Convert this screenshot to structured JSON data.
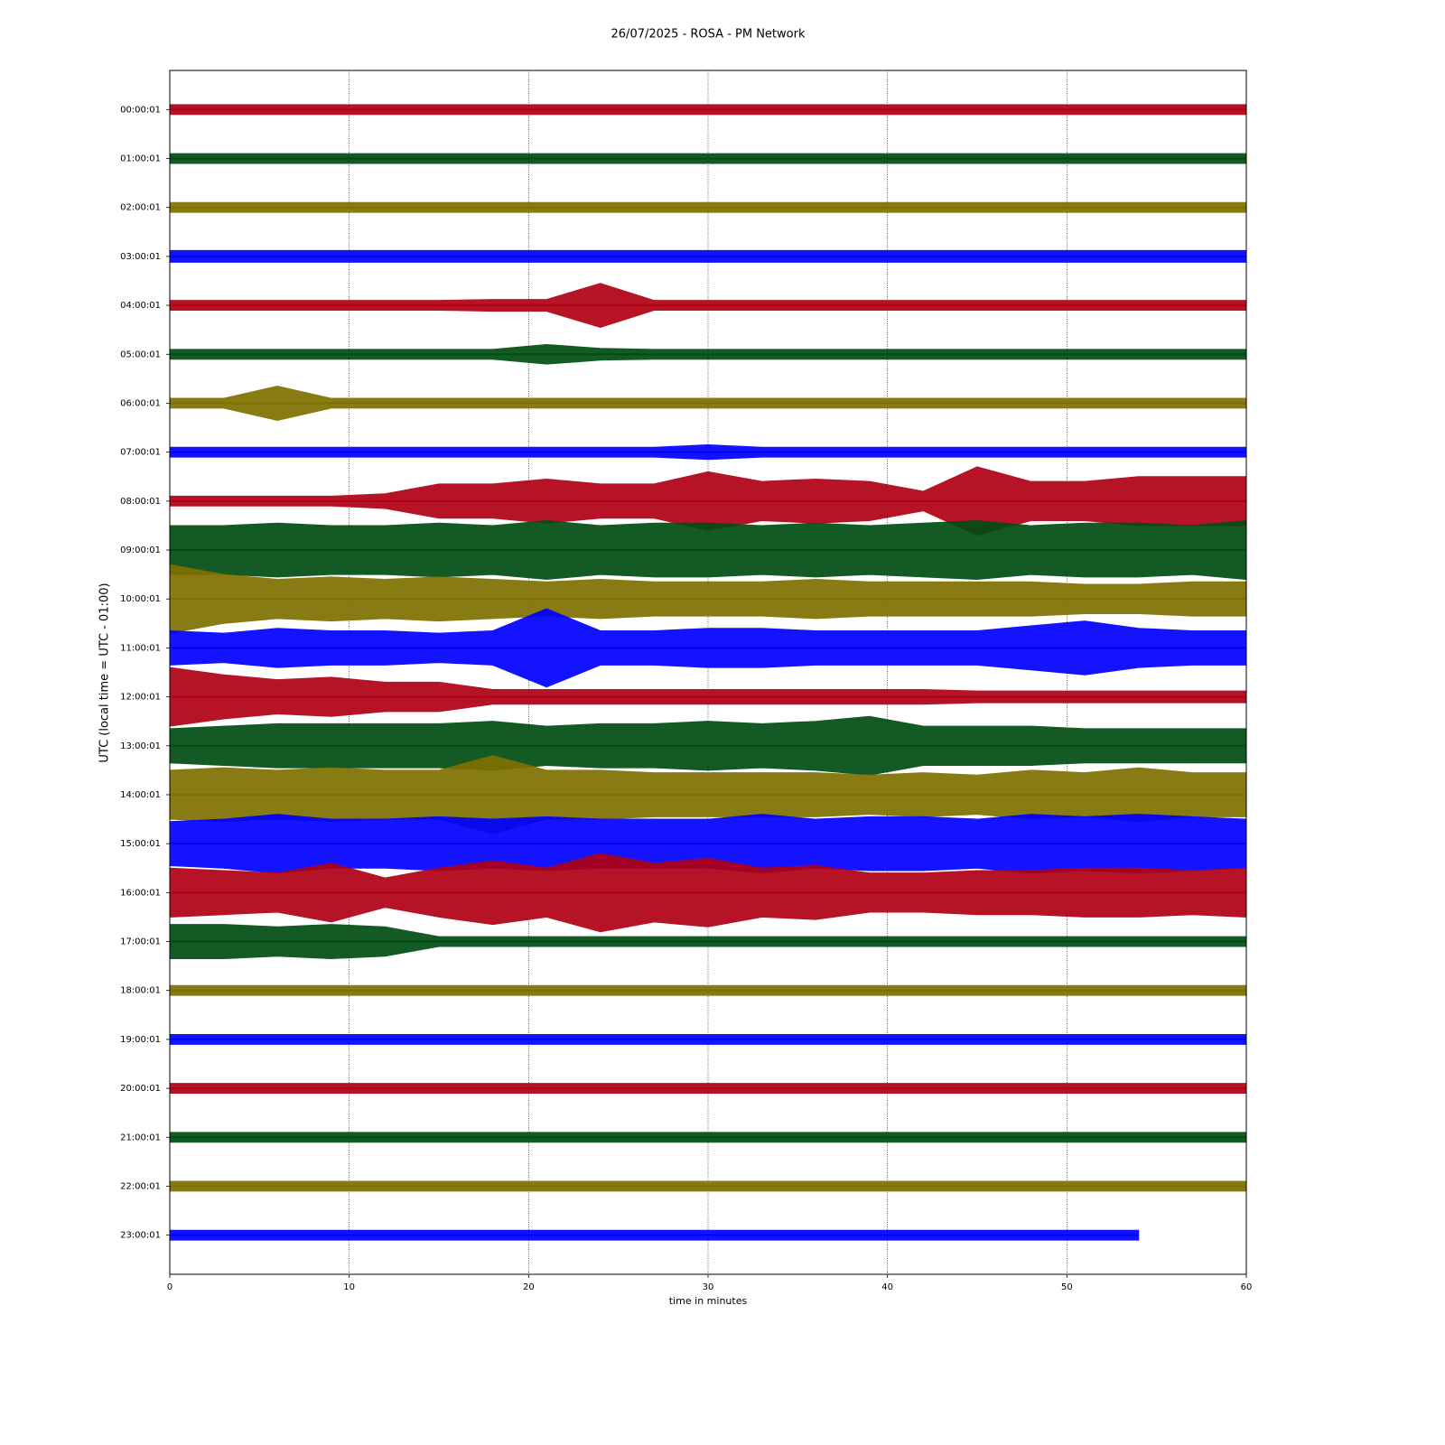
{
  "chart_data": {
    "type": "helicorder",
    "title": "26/07/2025 - ROSA - PM Network",
    "xlabel": "time in minutes",
    "ylabel": "UTC (local time = UTC - 01:00)",
    "xlim": [
      0,
      60
    ],
    "xticks": [
      0,
      10,
      20,
      30,
      40,
      50,
      60
    ],
    "ylim": [
      -0.8,
      23.8
    ],
    "y_inverted": true,
    "grid": true,
    "x": [
      0,
      3,
      6,
      9,
      12,
      15,
      18,
      21,
      24,
      27,
      30,
      33,
      36,
      39,
      42,
      45,
      48,
      51,
      54,
      57,
      60
    ],
    "series": [
      {
        "label": "00:00:01",
        "color": "#b00014",
        "values": [
          0.1,
          0.1,
          0.1,
          0.1,
          0.1,
          0.1,
          0.1,
          0.1,
          0.1,
          0.1,
          0.1,
          0.1,
          0.1,
          0.1,
          0.1,
          0.1,
          0.1,
          0.1,
          0.1,
          0.1,
          0.1
        ]
      },
      {
        "label": "01:00:01",
        "color": "#004d12",
        "values": [
          0.1,
          0.1,
          0.1,
          0.1,
          0.1,
          0.1,
          0.1,
          0.1,
          0.1,
          0.1,
          0.1,
          0.1,
          0.1,
          0.1,
          0.1,
          0.1,
          0.1,
          0.1,
          0.1,
          0.1,
          0.1
        ]
      },
      {
        "label": "02:00:01",
        "color": "#807000",
        "values": [
          0.1,
          0.1,
          0.1,
          0.1,
          0.1,
          0.1,
          0.1,
          0.1,
          0.1,
          0.1,
          0.1,
          0.1,
          0.1,
          0.1,
          0.1,
          0.1,
          0.1,
          0.1,
          0.1,
          0.1,
          0.1
        ]
      },
      {
        "label": "03:00:01",
        "color": "#0000ff",
        "values": [
          0.12,
          0.12,
          0.12,
          0.12,
          0.12,
          0.12,
          0.12,
          0.12,
          0.12,
          0.12,
          0.12,
          0.12,
          0.12,
          0.12,
          0.12,
          0.12,
          0.12,
          0.12,
          0.12,
          0.12,
          0.12
        ]
      },
      {
        "label": "04:00:01",
        "color": "#b00014",
        "values": [
          0.1,
          0.1,
          0.1,
          0.1,
          0.1,
          0.1,
          0.12,
          0.12,
          0.45,
          0.1,
          0.1,
          0.1,
          0.1,
          0.1,
          0.1,
          0.1,
          0.1,
          0.1,
          0.1,
          0.1,
          0.1
        ]
      },
      {
        "label": "05:00:01",
        "color": "#004d12",
        "values": [
          0.1,
          0.1,
          0.1,
          0.1,
          0.1,
          0.1,
          0.1,
          0.2,
          0.12,
          0.1,
          0.1,
          0.1,
          0.1,
          0.1,
          0.1,
          0.1,
          0.1,
          0.1,
          0.1,
          0.1,
          0.1
        ]
      },
      {
        "label": "06:00:01",
        "color": "#807000",
        "values": [
          0.1,
          0.1,
          0.35,
          0.1,
          0.1,
          0.1,
          0.1,
          0.1,
          0.1,
          0.1,
          0.1,
          0.1,
          0.1,
          0.1,
          0.1,
          0.1,
          0.1,
          0.1,
          0.1,
          0.1,
          0.1
        ]
      },
      {
        "label": "07:00:01",
        "color": "#0000ff",
        "values": [
          0.1,
          0.1,
          0.1,
          0.1,
          0.1,
          0.1,
          0.1,
          0.1,
          0.1,
          0.1,
          0.15,
          0.1,
          0.1,
          0.1,
          0.1,
          0.1,
          0.1,
          0.1,
          0.1,
          0.1,
          0.1
        ]
      },
      {
        "label": "08:00:01",
        "color": "#b00014",
        "values": [
          0.1,
          0.1,
          0.1,
          0.1,
          0.15,
          0.35,
          0.35,
          0.45,
          0.35,
          0.35,
          0.6,
          0.4,
          0.45,
          0.4,
          0.2,
          0.7,
          0.4,
          0.4,
          0.5,
          0.5,
          0.5
        ]
      },
      {
        "label": "09:00:01",
        "color": "#004d12",
        "values": [
          0.5,
          0.5,
          0.55,
          0.5,
          0.5,
          0.55,
          0.5,
          0.6,
          0.5,
          0.55,
          0.55,
          0.5,
          0.55,
          0.5,
          0.55,
          0.6,
          0.5,
          0.55,
          0.55,
          0.5,
          0.6
        ]
      },
      {
        "label": "10:00:01",
        "color": "#807000",
        "values": [
          0.7,
          0.5,
          0.4,
          0.45,
          0.4,
          0.45,
          0.4,
          0.35,
          0.4,
          0.35,
          0.35,
          0.35,
          0.4,
          0.35,
          0.35,
          0.35,
          0.35,
          0.3,
          0.3,
          0.35,
          0.35
        ]
      },
      {
        "label": "11:00:01",
        "color": "#0000ff",
        "values": [
          0.35,
          0.3,
          0.4,
          0.35,
          0.35,
          0.3,
          0.35,
          0.8,
          0.35,
          0.35,
          0.4,
          0.4,
          0.35,
          0.35,
          0.35,
          0.35,
          0.45,
          0.55,
          0.4,
          0.35,
          0.35
        ]
      },
      {
        "label": "12:00:01",
        "color": "#b00014",
        "values": [
          0.6,
          0.45,
          0.35,
          0.4,
          0.3,
          0.3,
          0.15,
          0.15,
          0.15,
          0.15,
          0.15,
          0.15,
          0.15,
          0.15,
          0.15,
          0.12,
          0.12,
          0.12,
          0.12,
          0.12,
          0.12
        ]
      },
      {
        "label": "13:00:01",
        "color": "#004d12",
        "values": [
          0.35,
          0.4,
          0.45,
          0.45,
          0.45,
          0.45,
          0.5,
          0.4,
          0.45,
          0.45,
          0.5,
          0.45,
          0.5,
          0.6,
          0.4,
          0.4,
          0.4,
          0.35,
          0.35,
          0.35,
          0.35
        ]
      },
      {
        "label": "14:00:01",
        "color": "#807000",
        "values": [
          0.5,
          0.55,
          0.5,
          0.55,
          0.5,
          0.5,
          0.8,
          0.5,
          0.5,
          0.45,
          0.45,
          0.45,
          0.45,
          0.4,
          0.45,
          0.4,
          0.5,
          0.45,
          0.55,
          0.45,
          0.45
        ]
      },
      {
        "label": "15:00:01",
        "color": "#0000ff",
        "values": [
          0.45,
          0.5,
          0.6,
          0.5,
          0.5,
          0.55,
          0.5,
          0.55,
          0.5,
          0.5,
          0.5,
          0.6,
          0.5,
          0.55,
          0.55,
          0.5,
          0.6,
          0.55,
          0.6,
          0.55,
          0.5
        ]
      },
      {
        "label": "16:00:01",
        "color": "#b00014",
        "values": [
          0.5,
          0.45,
          0.4,
          0.6,
          0.3,
          0.5,
          0.65,
          0.5,
          0.8,
          0.6,
          0.7,
          0.5,
          0.55,
          0.4,
          0.4,
          0.45,
          0.45,
          0.5,
          0.5,
          0.45,
          0.5
        ]
      },
      {
        "label": "17:00:01",
        "color": "#004d12",
        "values": [
          0.35,
          0.35,
          0.3,
          0.35,
          0.3,
          0.1,
          0.1,
          0.1,
          0.1,
          0.1,
          0.1,
          0.1,
          0.1,
          0.1,
          0.1,
          0.1,
          0.1,
          0.1,
          0.1,
          0.1,
          0.1
        ]
      },
      {
        "label": "18:00:01",
        "color": "#807000",
        "values": [
          0.1,
          0.1,
          0.1,
          0.1,
          0.1,
          0.1,
          0.1,
          0.1,
          0.1,
          0.1,
          0.1,
          0.1,
          0.1,
          0.1,
          0.1,
          0.1,
          0.1,
          0.1,
          0.1,
          0.1,
          0.1
        ]
      },
      {
        "label": "19:00:01",
        "color": "#0000ff",
        "values": [
          0.1,
          0.1,
          0.1,
          0.1,
          0.1,
          0.1,
          0.1,
          0.1,
          0.1,
          0.1,
          0.1,
          0.1,
          0.1,
          0.1,
          0.1,
          0.1,
          0.1,
          0.1,
          0.1,
          0.1,
          0.1
        ]
      },
      {
        "label": "20:00:01",
        "color": "#b00014",
        "values": [
          0.1,
          0.1,
          0.1,
          0.1,
          0.1,
          0.1,
          0.1,
          0.1,
          0.1,
          0.1,
          0.1,
          0.1,
          0.1,
          0.1,
          0.1,
          0.1,
          0.1,
          0.1,
          0.1,
          0.1,
          0.1
        ]
      },
      {
        "label": "21:00:01",
        "color": "#004d12",
        "values": [
          0.1,
          0.1,
          0.1,
          0.1,
          0.1,
          0.1,
          0.1,
          0.1,
          0.1,
          0.1,
          0.1,
          0.1,
          0.1,
          0.1,
          0.1,
          0.1,
          0.1,
          0.1,
          0.1,
          0.1,
          0.1
        ]
      },
      {
        "label": "22:00:01",
        "color": "#807000",
        "values": [
          0.1,
          0.1,
          0.1,
          0.1,
          0.1,
          0.1,
          0.1,
          0.1,
          0.1,
          0.1,
          0.1,
          0.1,
          0.1,
          0.1,
          0.1,
          0.1,
          0.1,
          0.1,
          0.1,
          0.1,
          0.1
        ]
      },
      {
        "label": "23:00:01",
        "color": "#0000ff",
        "values": [
          0.1,
          0.1,
          0.1,
          0.1,
          0.1,
          0.1,
          0.1,
          0.1,
          0.1,
          0.1,
          0.1,
          0.1,
          0.1,
          0.1,
          0.1,
          0.1,
          0.1,
          0.1,
          0.1,
          null,
          null
        ]
      }
    ]
  }
}
